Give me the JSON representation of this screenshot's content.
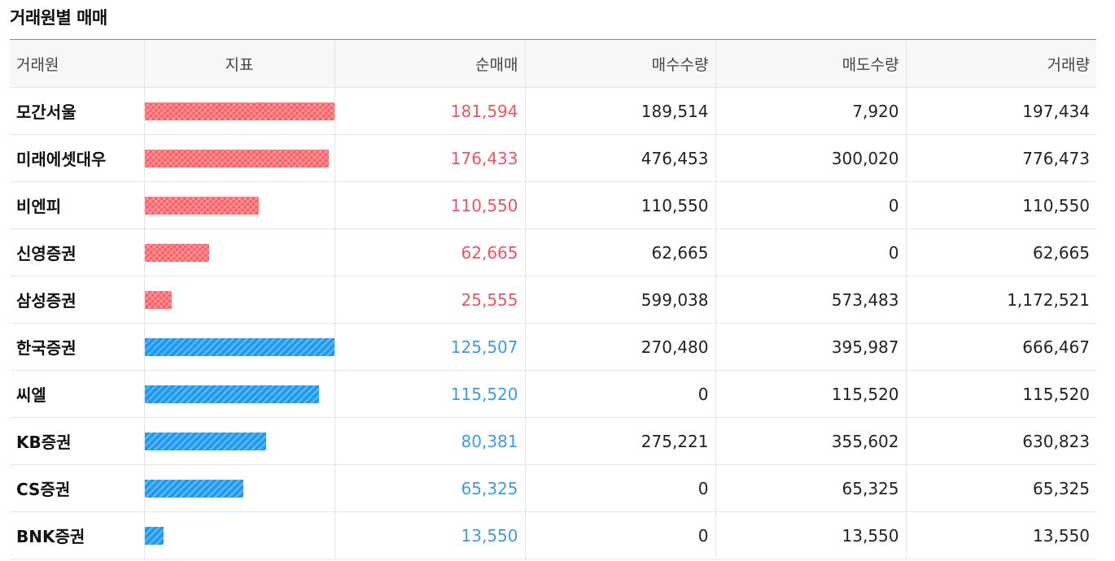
{
  "title": "거래원별 매매",
  "headers": [
    "거래원",
    "지표",
    "순매매",
    "매수수량",
    "매도수량",
    "거래량"
  ],
  "rows": [
    {
      "name": "모간서울",
      "side": "buy",
      "ratio": 1.0,
      "net": "181,594",
      "bought": "189,514",
      "sold": "7,920",
      "volume": "197,434"
    },
    {
      "name": "미래에셋대우",
      "side": "buy",
      "ratio": 0.97,
      "net": "176,433",
      "bought": "476,453",
      "sold": "300,020",
      "volume": "776,473"
    },
    {
      "name": "비엔피",
      "side": "buy",
      "ratio": 0.6,
      "net": "110,550",
      "bought": "110,550",
      "sold": "0",
      "volume": "110,550"
    },
    {
      "name": "신영증권",
      "side": "buy",
      "ratio": 0.34,
      "net": "62,665",
      "bought": "62,665",
      "sold": "0",
      "volume": "62,665"
    },
    {
      "name": "삼성증권",
      "side": "buy",
      "ratio": 0.14,
      "net": "25,555",
      "bought": "599,038",
      "sold": "573,483",
      "volume": "1,172,521"
    },
    {
      "name": "한국증권",
      "side": "sell",
      "ratio": 1.0,
      "net": "125,507",
      "bought": "270,480",
      "sold": "395,987",
      "volume": "666,467"
    },
    {
      "name": "씨엘",
      "side": "sell",
      "ratio": 0.92,
      "net": "115,520",
      "bought": "0",
      "sold": "115,520",
      "volume": "115,520"
    },
    {
      "name": "KB증권",
      "side": "sell",
      "ratio": 0.64,
      "net": "80,381",
      "bought": "275,221",
      "sold": "355,602",
      "volume": "630,823"
    },
    {
      "name": "CS증권",
      "side": "sell",
      "ratio": 0.52,
      "net": "65,325",
      "bought": "0",
      "sold": "65,325",
      "volume": "65,325"
    },
    {
      "name": "BNK증권",
      "side": "sell",
      "ratio": 0.1,
      "net": "13,550",
      "bought": "0",
      "sold": "13,550",
      "volume": "13,550"
    }
  ],
  "colors": {
    "buy": "#f2545f",
    "sell": "#3d9be9",
    "buy_bar": "#ff5a5f",
    "sell_bar": "#1e9bf0"
  }
}
